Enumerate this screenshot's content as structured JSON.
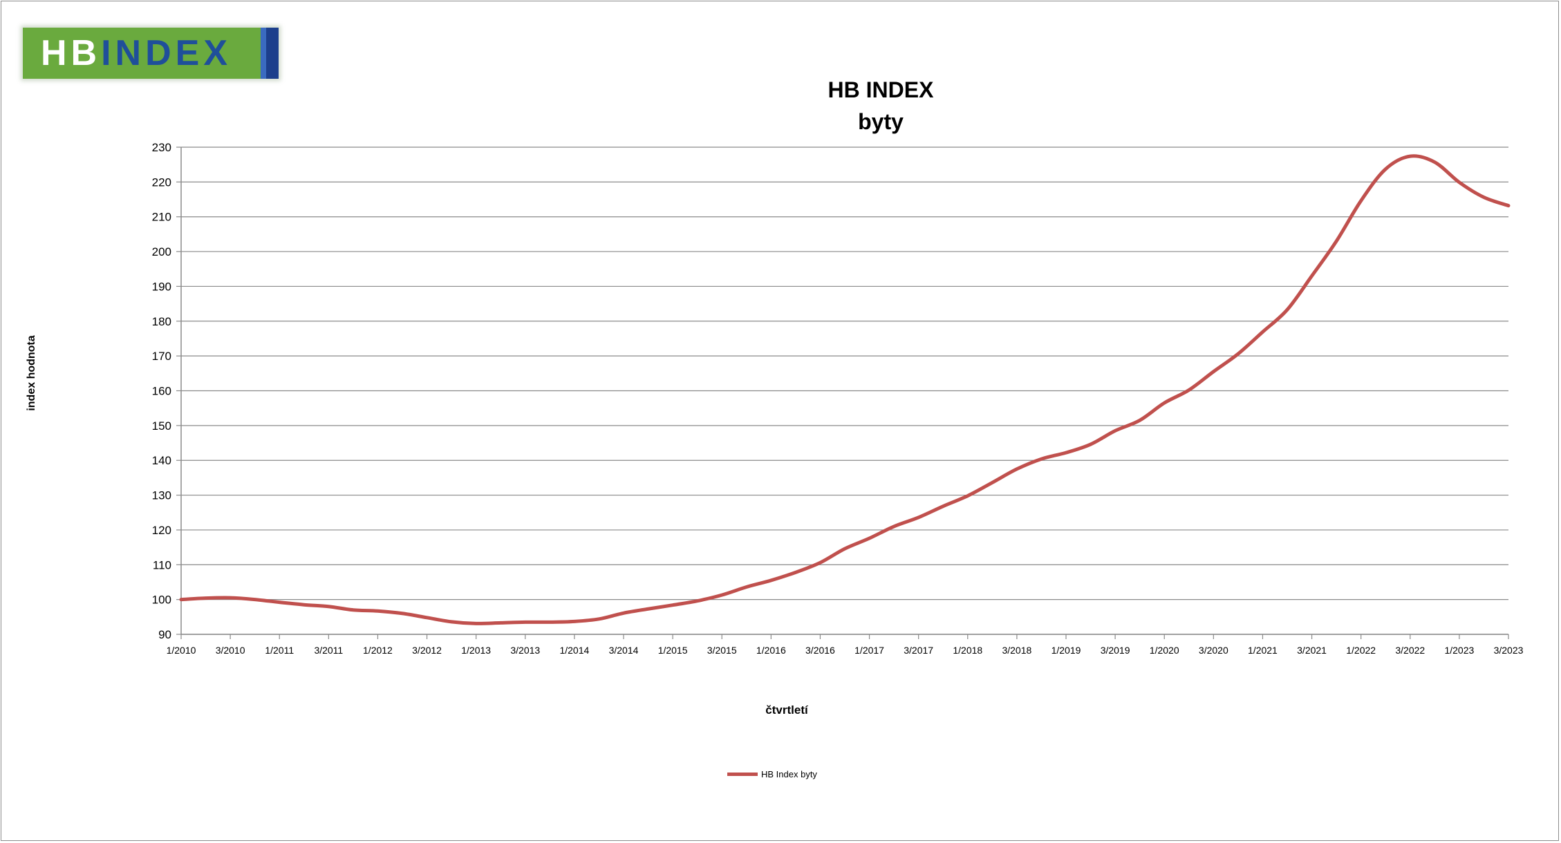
{
  "logo": {
    "part1": "HB",
    "part2": "INDEX"
  },
  "chart_data": {
    "type": "line",
    "title": "HB INDEX",
    "subtitle": "byty",
    "xlabel": "čtvrtletí",
    "ylabel": "index hodnota",
    "ylim": [
      90,
      230
    ],
    "ystep": 10,
    "grid": true,
    "legend_position": "bottom",
    "tick_labels": [
      "1/2010",
      "3/2010",
      "1/2011",
      "3/2011",
      "1/2012",
      "3/2012",
      "1/2013",
      "3/2013",
      "1/2014",
      "3/2014",
      "1/2015",
      "3/2015",
      "1/2016",
      "3/2016",
      "1/2017",
      "3/2017",
      "1/2018",
      "3/2018",
      "1/2019",
      "3/2019",
      "1/2020",
      "3/2020",
      "1/2021",
      "3/2021",
      "1/2022",
      "3/2022",
      "1/2023",
      "3/2023"
    ],
    "x": [
      "1/2010",
      "2/2010",
      "3/2010",
      "4/2010",
      "1/2011",
      "2/2011",
      "3/2011",
      "4/2011",
      "1/2012",
      "2/2012",
      "3/2012",
      "4/2012",
      "1/2013",
      "2/2013",
      "3/2013",
      "4/2013",
      "1/2014",
      "2/2014",
      "3/2014",
      "4/2014",
      "1/2015",
      "2/2015",
      "3/2015",
      "4/2015",
      "1/2016",
      "2/2016",
      "3/2016",
      "4/2016",
      "1/2017",
      "2/2017",
      "3/2017",
      "4/2017",
      "1/2018",
      "2/2018",
      "3/2018",
      "4/2018",
      "1/2019",
      "2/2019",
      "3/2019",
      "4/2019",
      "1/2020",
      "2/2020",
      "3/2020",
      "4/2020",
      "1/2021",
      "2/2021",
      "3/2021",
      "4/2021",
      "1/2022",
      "2/2022",
      "3/2022",
      "4/2022",
      "1/2023",
      "2/2023",
      "3/2023"
    ],
    "series": [
      {
        "name": "HB Index byty",
        "color": "#c0504d",
        "values": [
          100.0,
          100.4,
          100.5,
          100.0,
          99.2,
          98.5,
          98.0,
          97.0,
          96.7,
          96.0,
          94.8,
          93.6,
          93.1,
          93.3,
          93.5,
          93.5,
          93.7,
          94.4,
          96.1,
          97.3,
          98.4,
          99.6,
          101.3,
          103.6,
          105.5,
          107.8,
          110.6,
          114.6,
          117.6,
          121.0,
          123.6,
          126.8,
          129.8,
          133.6,
          137.5,
          140.4,
          142.2,
          144.6,
          148.5,
          151.5,
          156.5,
          160.2,
          165.5,
          170.6,
          176.9,
          183.3,
          193.0,
          203.0,
          214.6,
          223.7,
          227.4,
          225.7,
          219.9,
          215.6,
          213.2
        ]
      }
    ]
  }
}
